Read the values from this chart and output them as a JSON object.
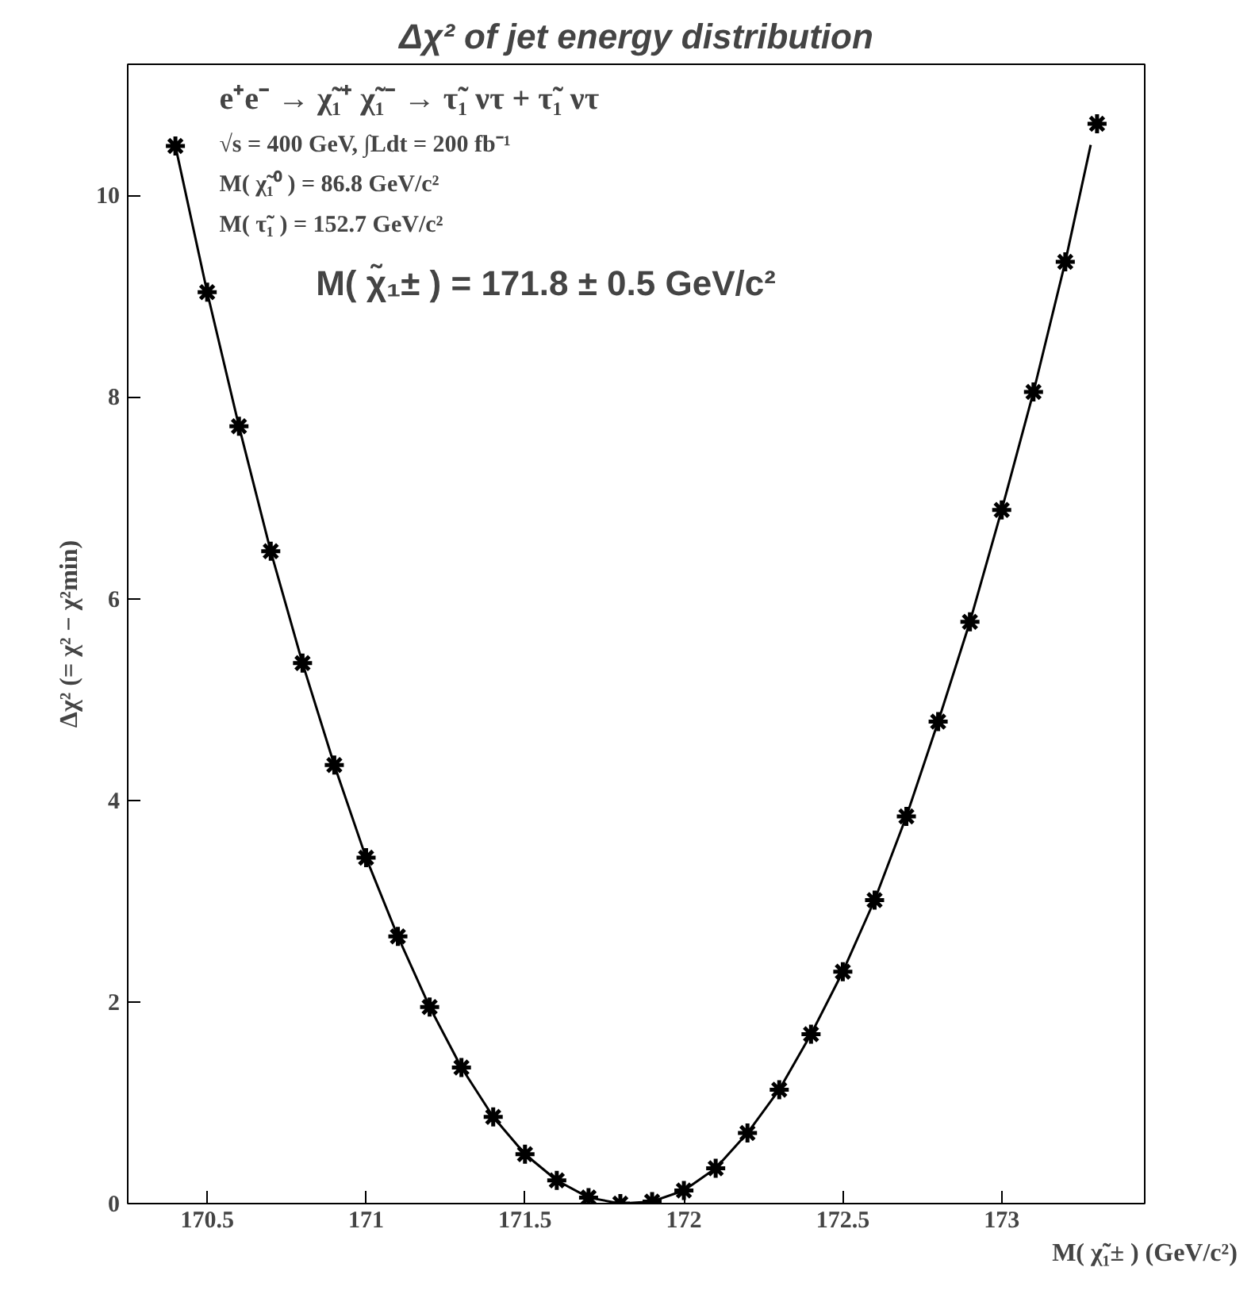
{
  "chart_data": {
    "type": "scatter",
    "title": "Δχ² of jet energy distribution",
    "xlabel": "M( χ̃₁± ) (GeV/c²)",
    "ylabel": "Δχ² (= χ² − χ²min)",
    "annotations": [
      "e⁺e⁻ → χ̃₁⁺ χ̃₁⁻ → τ̃₁ ντ + τ̃₁ ντ",
      "√s = 400 GeV,  ∫Ldt = 200 fb⁻¹",
      "M( χ̃₁⁰ ) = 86.8 GeV/c²",
      "M( τ̃₁ ) = 152.7 GeV/c²",
      "M( χ̃₁± ) = 171.8 ± 0.5 GeV/c²"
    ],
    "x": [
      170.4,
      170.5,
      170.6,
      170.7,
      170.8,
      170.9,
      171.0,
      171.1,
      171.2,
      171.3,
      171.4,
      171.5,
      171.6,
      171.7,
      171.8,
      171.9,
      172.0,
      172.1,
      172.2,
      172.3,
      172.4,
      172.5,
      172.6,
      172.7,
      172.8,
      172.9,
      173.0,
      173.1,
      173.2,
      173.3
    ],
    "series": [
      {
        "color": "#000000",
        "marker": "cross",
        "values": [
          10.49,
          9.04,
          7.71,
          6.47,
          5.36,
          4.35,
          3.43,
          2.65,
          1.95,
          1.35,
          0.86,
          0.49,
          0.23,
          0.06,
          0.0,
          0.02,
          0.13,
          0.35,
          0.7,
          1.13,
          1.68,
          2.3,
          3.01,
          3.84,
          4.78,
          5.77,
          6.88,
          8.05,
          9.34,
          10.71
        ]
      },
      {
        "type": "line",
        "color": "#000000",
        "marker": "none",
        "line_style": "solid",
        "x": [
          170.4,
          170.5,
          170.6,
          170.7,
          170.8,
          170.9,
          171.0,
          171.1,
          171.2,
          171.3,
          171.4,
          171.5,
          171.6,
          171.7,
          171.8,
          171.9,
          172.0,
          172.1,
          172.2,
          172.3,
          172.4,
          172.5,
          172.6,
          172.7,
          172.8,
          172.9,
          173.0,
          173.1,
          173.2,
          173.28
        ],
        "values": [
          10.49,
          9.04,
          7.71,
          6.47,
          5.36,
          4.35,
          3.43,
          2.65,
          1.95,
          1.35,
          0.86,
          0.49,
          0.23,
          0.06,
          0.0,
          0.02,
          0.13,
          0.35,
          0.7,
          1.13,
          1.68,
          2.3,
          3.01,
          3.84,
          4.78,
          5.77,
          6.88,
          8.05,
          9.34,
          10.5
        ]
      }
    ],
    "xlim": [
      170.25,
      173.45
    ],
    "xticks": [
      170.5,
      171,
      171.5,
      172,
      172.5,
      173
    ],
    "ylim": [
      0,
      11.3
    ],
    "yticks": [
      0,
      2,
      4,
      6,
      8,
      10
    ],
    "grid": false
  }
}
